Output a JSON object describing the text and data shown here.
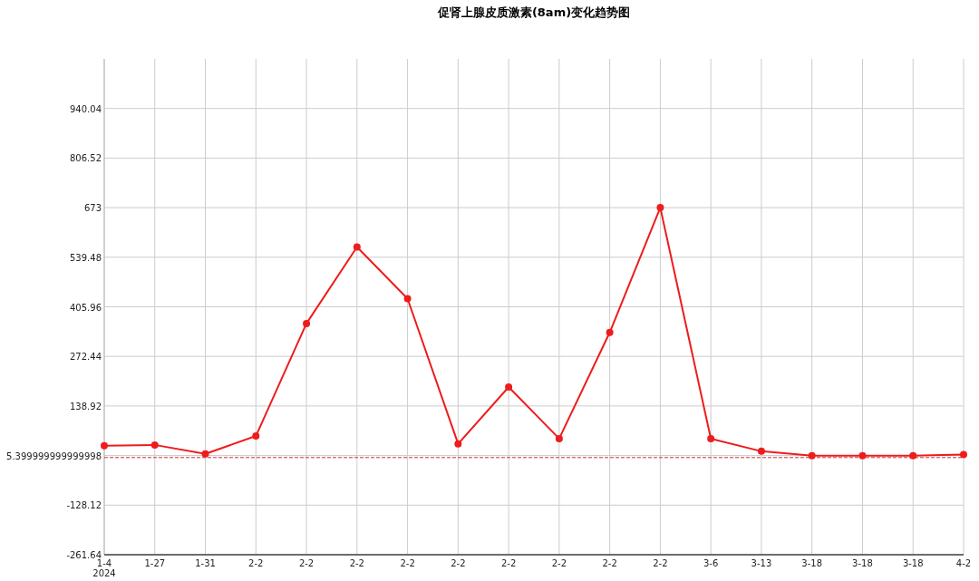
{
  "chart_data": {
    "type": "line",
    "title": "促肾上腺皮质激素(8am)变化趋势图",
    "categories": [
      "1-4\n2024",
      "1-27",
      "1-31",
      "2-2",
      "2-2",
      "2-2",
      "2-2",
      "2-2",
      "2-2",
      "2-2",
      "2-2",
      "2-2",
      "3-6",
      "3-13",
      "3-18",
      "3-18",
      "3-18",
      "4-2"
    ],
    "series": [
      {
        "color": "#ee1c1c",
        "values": [
          32,
          34,
          10,
          58,
          361,
          567,
          428,
          37,
          190,
          51,
          337,
          673,
          51,
          17,
          5,
          5,
          5,
          8
        ]
      }
    ],
    "ylim": [
      -261.64,
      1073.56
    ],
    "yticks": [
      -261.64,
      -128.12,
      5.399999999999998,
      138.92,
      272.44,
      405.96,
      539.48,
      673,
      806.52,
      940.04
    ],
    "ref_lines": [
      {
        "axis": "y",
        "value": 0,
        "color": "#cc3333",
        "line_style": "dashed"
      }
    ],
    "grid": true,
    "marker": "circle",
    "line_style": "solid"
  }
}
